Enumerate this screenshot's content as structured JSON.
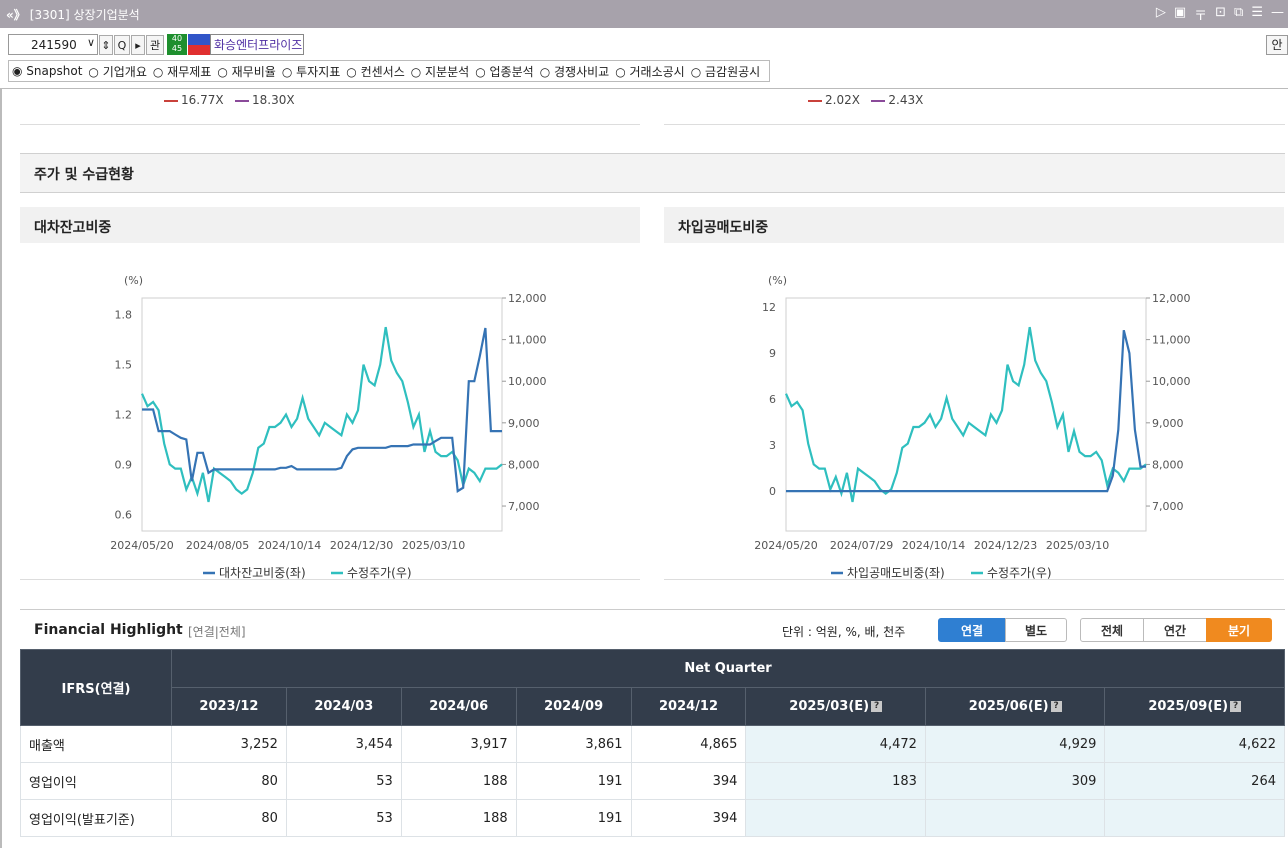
{
  "window": {
    "logo": "«》",
    "title": "[3301] 상장기업분석"
  },
  "toolbar": {
    "code": "241590",
    "gwan": "관",
    "company": "화승엔터프라이즈",
    "badge": "40 45",
    "right_btn": "안"
  },
  "tabs": [
    "Snapshot",
    "기업개요",
    "재무제표",
    "재무비율",
    "투자지표",
    "컨센서스",
    "지분분석",
    "업종분석",
    "경쟁사비교",
    "거래소공시",
    "금감원공시"
  ],
  "top_legend_left": [
    "16.77X",
    "18.30X"
  ],
  "top_legend_right": [
    "2.02X",
    "2.43X"
  ],
  "section_title": "주가 및 수급현황",
  "panels": {
    "left_title": "대차잔고비중",
    "right_title": "차입공매도비중"
  },
  "chart_data": [
    {
      "type": "line",
      "title": "대차잔고비중",
      "ylabel_left": "(%)",
      "y_left_ticks": [
        "1.8",
        "1.5",
        "1.2",
        "0.9",
        "0.6"
      ],
      "y_left_range": [
        0.5,
        1.9
      ],
      "y_right_ticks": [
        "12,000",
        "11,000",
        "10,000",
        "9,000",
        "8,000",
        "7,000"
      ],
      "y_right_range": [
        6400,
        12000
      ],
      "x_ticks": [
        "2024/05/20",
        "2024/08/05",
        "2024/10/14",
        "2024/12/30",
        "2025/03/10"
      ],
      "series": [
        {
          "name": "대차잔고비중(좌)",
          "axis": "left",
          "color": "#3573b4",
          "values": [
            1.23,
            1.23,
            1.23,
            1.1,
            1.1,
            1.1,
            1.08,
            1.06,
            1.05,
            0.8,
            0.97,
            0.97,
            0.85,
            0.87,
            0.87,
            0.87,
            0.87,
            0.87,
            0.87,
            0.87,
            0.87,
            0.87,
            0.87,
            0.87,
            0.87,
            0.88,
            0.88,
            0.89,
            0.87,
            0.87,
            0.87,
            0.87,
            0.87,
            0.87,
            0.87,
            0.87,
            0.88,
            0.95,
            0.99,
            1.0,
            1.0,
            1.0,
            1.0,
            1.0,
            1.0,
            1.01,
            1.01,
            1.01,
            1.01,
            1.02,
            1.02,
            1.02,
            1.02,
            1.04,
            1.06,
            1.06,
            1.06,
            0.74,
            0.76,
            1.4,
            1.4,
            1.55,
            1.72,
            1.1,
            1.1,
            1.1
          ]
        },
        {
          "name": "수정주가(우)",
          "axis": "right",
          "color": "#2fbfbf",
          "values": [
            9700,
            9400,
            9500,
            9300,
            8500,
            8000,
            7900,
            7900,
            7400,
            7700,
            7300,
            7800,
            7100,
            7900,
            7800,
            7700,
            7600,
            7400,
            7300,
            7400,
            7800,
            8400,
            8500,
            8900,
            8900,
            9000,
            9200,
            8900,
            9100,
            9600,
            9100,
            8900,
            8700,
            9000,
            8900,
            8800,
            8700,
            9200,
            9000,
            9300,
            10400,
            10000,
            9900,
            10400,
            11300,
            10500,
            10200,
            10000,
            9500,
            8900,
            9200,
            8300,
            8800,
            8300,
            8200,
            8200,
            8300,
            8100,
            7500,
            7900,
            7800,
            7600,
            7900,
            7900,
            7900,
            8000
          ]
        }
      ]
    },
    {
      "type": "line",
      "title": "차입공매도비중",
      "ylabel_left": "(%)",
      "y_left_ticks": [
        "12",
        "9",
        "6",
        "3",
        "0"
      ],
      "y_left_range": [
        -2.6,
        12.6
      ],
      "y_right_ticks": [
        "12,000",
        "11,000",
        "10,000",
        "9,000",
        "8,000",
        "7,000"
      ],
      "y_right_range": [
        6400,
        12000
      ],
      "x_ticks": [
        "2024/05/20",
        "2024/07/29",
        "2024/10/14",
        "2024/12/23",
        "2025/03/10"
      ],
      "series": [
        {
          "name": "차입공매도비중(좌)",
          "axis": "left",
          "color": "#3573b4",
          "values": [
            0,
            0,
            0,
            0,
            0,
            0,
            0,
            0,
            0,
            0,
            0,
            0,
            0,
            0,
            0,
            0,
            0,
            0,
            0,
            0,
            0,
            0,
            0,
            0,
            0,
            0,
            0,
            0,
            0,
            0,
            0,
            0,
            0,
            0,
            0,
            0,
            0,
            0,
            0,
            0,
            0,
            0,
            0,
            0,
            0,
            0,
            0,
            0,
            0,
            0,
            0,
            0,
            0,
            0,
            0,
            0,
            0,
            0,
            0,
            1,
            4,
            10.5,
            9,
            4,
            1.6,
            1.6
          ]
        },
        {
          "name": "수정주가(우)",
          "axis": "right",
          "color": "#2fbfbf",
          "values": [
            9700,
            9400,
            9500,
            9300,
            8500,
            8000,
            7900,
            7900,
            7400,
            7700,
            7300,
            7800,
            7100,
            7900,
            7800,
            7700,
            7600,
            7400,
            7300,
            7400,
            7800,
            8400,
            8500,
            8900,
            8900,
            9000,
            9200,
            8900,
            9100,
            9600,
            9100,
            8900,
            8700,
            9000,
            8900,
            8800,
            8700,
            9200,
            9000,
            9300,
            10400,
            10000,
            9900,
            10400,
            11300,
            10500,
            10200,
            10000,
            9500,
            8900,
            9200,
            8300,
            8800,
            8300,
            8200,
            8200,
            8300,
            8100,
            7500,
            7900,
            7800,
            7600,
            7900,
            7900,
            7900,
            8000
          ]
        }
      ]
    }
  ],
  "financial": {
    "title": "Financial Highlight",
    "subtitle": "[연결|전체]",
    "unit": "단위 : 억원, %, 배, 천주",
    "btn_consolidated": "연결",
    "btn_separate": "별도",
    "btn_all": "전체",
    "btn_annual": "연간",
    "btn_quarter": "분기",
    "row_header": "IFRS(연결)",
    "group_header": "Net Quarter",
    "columns": [
      "2023/12",
      "2024/03",
      "2024/06",
      "2024/09",
      "2024/12",
      "2025/03(E)",
      "2025/06(E)",
      "2025/09(E)"
    ],
    "rows": [
      {
        "label": "매출액",
        "values": [
          "3,252",
          "3,454",
          "3,917",
          "3,861",
          "4,865",
          "4,472",
          "4,929",
          "4,622"
        ]
      },
      {
        "label": "영업이익",
        "values": [
          "80",
          "53",
          "188",
          "191",
          "394",
          "183",
          "309",
          "264"
        ]
      },
      {
        "label": "영업이익(발표기준)",
        "values": [
          "80",
          "53",
          "188",
          "191",
          "394",
          "",
          "",
          ""
        ]
      }
    ]
  },
  "colors": {
    "title_bar": "#a7a2ab",
    "table_header": "#333d4b",
    "active_blue": "#2f7fd2",
    "active_orange": "#f08a1f",
    "estimate_bg": "#e9f4f8"
  }
}
